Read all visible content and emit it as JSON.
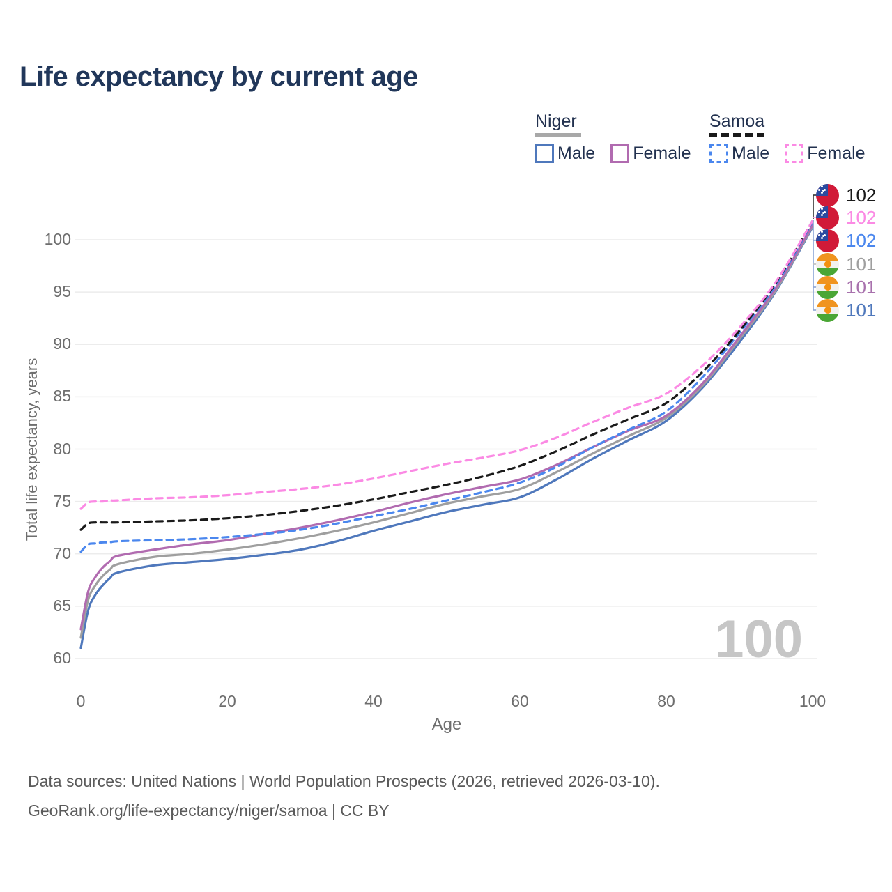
{
  "title": "Life expectancy by current age",
  "legend": {
    "groups": [
      {
        "name": "Niger",
        "line_style": "solid",
        "line_color": "#a8a8a8",
        "items": [
          {
            "label": "Male",
            "color": "#4f78bc"
          },
          {
            "label": "Female",
            "color": "#b16bb0"
          }
        ]
      },
      {
        "name": "Samoa",
        "line_style": "dashed",
        "line_color": "#1a1a1a",
        "items": [
          {
            "label": "Male",
            "color": "#4b87ee"
          },
          {
            "label": "Female",
            "color": "#fb8ae4"
          }
        ]
      }
    ]
  },
  "chart_data": {
    "type": "line",
    "title": "Life expectancy by current age",
    "xlabel": "Age",
    "ylabel": "Total life expectancy, years",
    "xlim": [
      0,
      100
    ],
    "ylim": [
      60,
      102
    ],
    "x_ticks": [
      0,
      20,
      40,
      60,
      80,
      100
    ],
    "y_ticks": [
      60,
      65,
      70,
      75,
      80,
      85,
      90,
      95,
      100
    ],
    "grid": "horizontal-only",
    "legend_position": "top-right",
    "ages": [
      0,
      1,
      2,
      3,
      4,
      5,
      10,
      15,
      20,
      25,
      30,
      35,
      40,
      45,
      50,
      55,
      60,
      65,
      70,
      75,
      80,
      85,
      90,
      95,
      100
    ],
    "series": [
      {
        "id": "niger-male",
        "name": "Niger Male",
        "color": "#4f78bc",
        "dashed": false,
        "end_label": "101",
        "values": [
          61.0,
          64.6,
          66.1,
          67.0,
          67.7,
          68.2,
          68.9,
          69.2,
          69.5,
          69.9,
          70.4,
          71.2,
          72.2,
          73.1,
          74.0,
          74.7,
          75.4,
          77.1,
          79.1,
          80.9,
          82.7,
          85.9,
          90.2,
          95.1,
          101.2
        ]
      },
      {
        "id": "niger-average",
        "name": "Niger (both sexes)",
        "color": "#9f9f9f",
        "dashed": false,
        "end_label": "101",
        "values": [
          62.0,
          65.6,
          67.0,
          67.9,
          68.5,
          69.0,
          69.7,
          70.0,
          70.4,
          70.9,
          71.5,
          72.2,
          73.0,
          73.9,
          74.8,
          75.5,
          76.2,
          77.8,
          79.6,
          81.3,
          83.0,
          86.1,
          90.5,
          95.2,
          101.3
        ]
      },
      {
        "id": "niger-female",
        "name": "Niger Female",
        "color": "#b16bb0",
        "dashed": false,
        "end_label": "101",
        "values": [
          62.8,
          66.4,
          67.8,
          68.7,
          69.3,
          69.8,
          70.4,
          70.9,
          71.3,
          71.9,
          72.5,
          73.2,
          74.0,
          74.9,
          75.7,
          76.4,
          77.1,
          78.5,
          80.2,
          81.8,
          83.2,
          86.3,
          90.7,
          95.4,
          101.4
        ]
      },
      {
        "id": "samoa-male",
        "name": "Samoa Male",
        "color": "#4b87ee",
        "dashed": true,
        "end_label": "102",
        "values": [
          70.2,
          70.9,
          71.0,
          71.1,
          71.1,
          71.2,
          71.3,
          71.4,
          71.6,
          71.9,
          72.3,
          72.9,
          73.6,
          74.3,
          75.1,
          75.9,
          76.8,
          78.3,
          80.2,
          81.9,
          83.6,
          86.9,
          91.1,
          95.7,
          101.7
        ]
      },
      {
        "id": "samoa-average",
        "name": "Samoa (both sexes)",
        "color": "#1a1a1a",
        "dashed": true,
        "end_label": "102",
        "values": [
          72.3,
          72.9,
          73.0,
          73.0,
          73.0,
          73.0,
          73.1,
          73.2,
          73.4,
          73.7,
          74.1,
          74.6,
          75.2,
          75.9,
          76.6,
          77.4,
          78.4,
          79.8,
          81.4,
          82.9,
          84.4,
          87.4,
          91.3,
          95.9,
          101.8
        ]
      },
      {
        "id": "samoa-female",
        "name": "Samoa Female",
        "color": "#fb8ae4",
        "dashed": true,
        "end_label": "102",
        "values": [
          74.3,
          74.9,
          75.0,
          75.0,
          75.1,
          75.1,
          75.3,
          75.4,
          75.6,
          75.9,
          76.2,
          76.6,
          77.2,
          77.9,
          78.6,
          79.2,
          79.9,
          81.1,
          82.6,
          84.0,
          85.3,
          88.0,
          91.6,
          96.0,
          101.8
        ]
      }
    ]
  },
  "end_labels": [
    {
      "value": "102",
      "flag": "samoa",
      "series_id": "samoa-average",
      "color": "#1a1a1a"
    },
    {
      "value": "102",
      "flag": "samoa",
      "series_id": "samoa-female",
      "color": "#fb8ae4"
    },
    {
      "value": "102",
      "flag": "samoa",
      "series_id": "samoa-male",
      "color": "#4b87ee"
    },
    {
      "value": "101",
      "flag": "niger",
      "series_id": "niger-average",
      "color": "#9f9f9f"
    },
    {
      "value": "101",
      "flag": "niger",
      "series_id": "niger-female",
      "color": "#a871ad"
    },
    {
      "value": "101",
      "flag": "niger",
      "series_id": "niger-male",
      "color": "#4f78bc"
    }
  ],
  "watermark": "100",
  "footer": {
    "line1": "Data sources: United Nations | World Population Prospects (2026, retrieved 2026-03-10).",
    "line2": "GeoRank.org/life-expectancy/niger/samoa | CC BY"
  }
}
